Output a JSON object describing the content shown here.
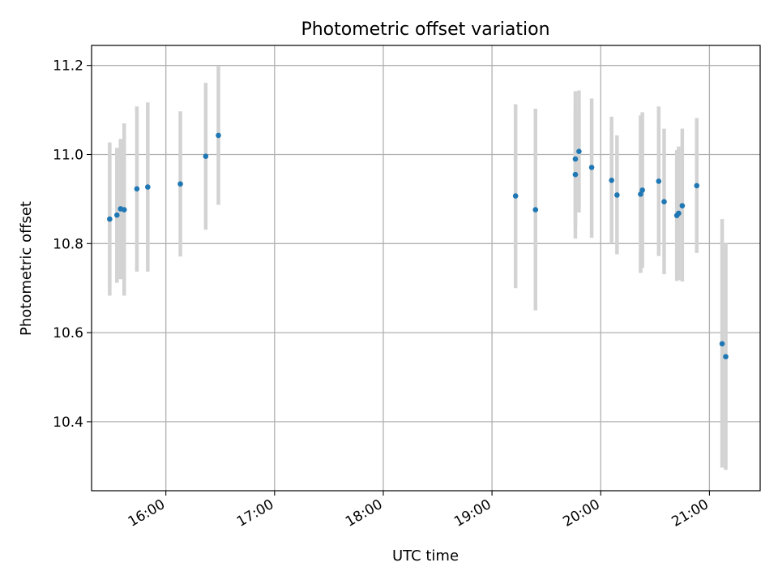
{
  "chart_data": {
    "type": "scatter",
    "title": "Photometric offset variation",
    "xlabel": "UTC time",
    "ylabel": "Photometric offset",
    "x_tick_labels": [
      "16:00",
      "17:00",
      "18:00",
      "19:00",
      "20:00",
      "21:00"
    ],
    "y_tick_labels": [
      "10.4",
      "10.6",
      "10.8",
      "11.0",
      "11.2"
    ],
    "y_ticks": [
      10.4,
      10.6,
      10.8,
      11.0,
      11.2
    ],
    "xlim": [
      "15:19",
      "21:28"
    ],
    "ylim": [
      10.245,
      11.245
    ],
    "grid": true,
    "colors": {
      "points": "#1f77b4",
      "error_bars": "#d3d3d3"
    },
    "series": [
      {
        "points": [
          {
            "x": "15:29",
            "y": 10.855,
            "ymin": 10.683,
            "ymax": 11.027
          },
          {
            "x": "15:33",
            "y": 10.864,
            "ymin": 10.712,
            "ymax": 11.015
          },
          {
            "x": "15:35",
            "y": 10.878,
            "ymin": 10.72,
            "ymax": 11.035
          },
          {
            "x": "15:37",
            "y": 10.876,
            "ymin": 10.683,
            "ymax": 11.07
          },
          {
            "x": "15:44",
            "y": 10.923,
            "ymin": 10.737,
            "ymax": 11.108
          },
          {
            "x": "15:50",
            "y": 10.927,
            "ymin": 10.737,
            "ymax": 11.117
          },
          {
            "x": "16:08",
            "y": 10.934,
            "ymin": 10.771,
            "ymax": 11.097
          },
          {
            "x": "16:22",
            "y": 10.996,
            "ymin": 10.831,
            "ymax": 11.161
          },
          {
            "x": "16:29",
            "y": 11.043,
            "ymin": 10.887,
            "ymax": 11.198
          },
          {
            "x": "19:13",
            "y": 10.907,
            "ymin": 10.7,
            "ymax": 11.113
          },
          {
            "x": "19:24",
            "y": 10.876,
            "ymin": 10.65,
            "ymax": 11.103
          },
          {
            "x": "19:46",
            "y": 10.99,
            "ymin": 10.838,
            "ymax": 11.142
          },
          {
            "x": "19:46",
            "y": 10.955,
            "ymin": 10.811,
            "ymax": 11.1
          },
          {
            "x": "19:48",
            "y": 11.007,
            "ymin": 10.87,
            "ymax": 11.144
          },
          {
            "x": "19:55",
            "y": 10.971,
            "ymin": 10.813,
            "ymax": 11.126
          },
          {
            "x": "20:06",
            "y": 10.942,
            "ymin": 10.8,
            "ymax": 11.085
          },
          {
            "x": "20:09",
            "y": 10.909,
            "ymin": 10.776,
            "ymax": 11.043
          },
          {
            "x": "20:22",
            "y": 10.911,
            "ymin": 10.734,
            "ymax": 11.088
          },
          {
            "x": "20:23",
            "y": 10.92,
            "ymin": 10.745,
            "ymax": 11.095
          },
          {
            "x": "20:32",
            "y": 10.94,
            "ymin": 10.772,
            "ymax": 11.108
          },
          {
            "x": "20:35",
            "y": 10.894,
            "ymin": 10.731,
            "ymax": 11.058
          },
          {
            "x": "20:42",
            "y": 10.863,
            "ymin": 10.716,
            "ymax": 11.01
          },
          {
            "x": "20:43",
            "y": 10.868,
            "ymin": 10.718,
            "ymax": 11.018
          },
          {
            "x": "20:45",
            "y": 10.885,
            "ymin": 10.715,
            "ymax": 11.058
          },
          {
            "x": "20:53",
            "y": 10.93,
            "ymin": 10.779,
            "ymax": 11.082
          },
          {
            "x": "21:07",
            "y": 10.575,
            "ymin": 10.297,
            "ymax": 10.855
          },
          {
            "x": "21:09",
            "y": 10.546,
            "ymin": 10.292,
            "ymax": 10.8
          }
        ]
      }
    ]
  }
}
